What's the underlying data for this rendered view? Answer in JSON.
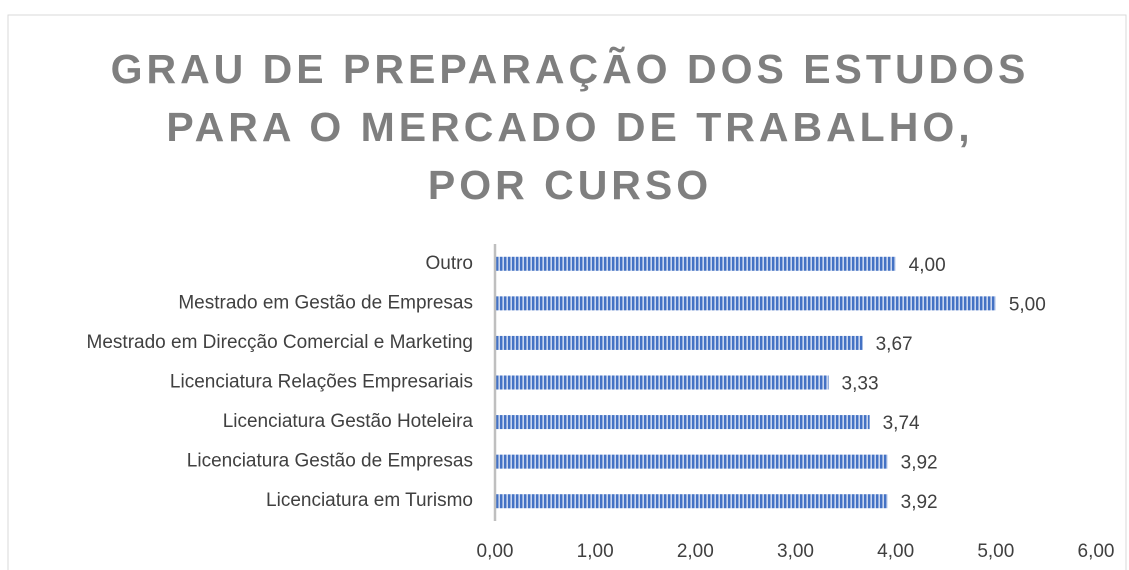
{
  "chart_data": {
    "type": "hbar",
    "title": [
      "GRAU DE PREPARAÇÃO DOS ESTUDOS",
      "PARA O MERCADO DE TRABALHO,",
      "POR CURSO"
    ],
    "categories": [
      "Outro",
      "Mestrado em Gestão de Empresas",
      "Mestrado em Direcção Comercial e Marketing",
      "Licenciatura Relações Empresariais",
      "Licenciatura Gestão Hoteleira",
      "Licenciatura Gestão de Empresas",
      "Licenciatura em Turismo"
    ],
    "values": [
      4.0,
      5.0,
      3.67,
      3.33,
      3.74,
      3.92,
      3.92
    ],
    "value_labels": [
      "4,00",
      "5,00",
      "3,67",
      "3,33",
      "3,74",
      "3,92",
      "3,92"
    ],
    "color": "#4472c4",
    "xlim": [
      0,
      6
    ],
    "xticks": [
      {
        "value": 0,
        "label": "0,00"
      },
      {
        "value": 1,
        "label": "1,00"
      },
      {
        "value": 2,
        "label": "2,00"
      },
      {
        "value": 3,
        "label": "3,00"
      },
      {
        "value": 4,
        "label": "4,00"
      },
      {
        "value": 5,
        "label": "5,00"
      },
      {
        "value": 6,
        "label": "6,00"
      }
    ]
  }
}
